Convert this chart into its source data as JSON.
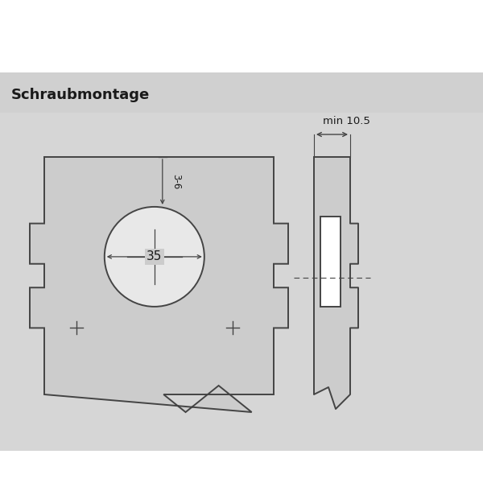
{
  "title": "Schraubmontage",
  "bg_outer": "#ffffff",
  "bg_gray": "#d6d6d6",
  "header_bg": "#d0d0d0",
  "shape_fill": "#cccccc",
  "line_color": "#444444",
  "circle_fill": "#e8e8e8",
  "inner_rect_fill": "#ffffff",
  "circle_diameter_label": "35",
  "depth_label": "3-6",
  "min_label": "min 10.5",
  "title_fontsize": 13,
  "label_fontsize": 9.5
}
